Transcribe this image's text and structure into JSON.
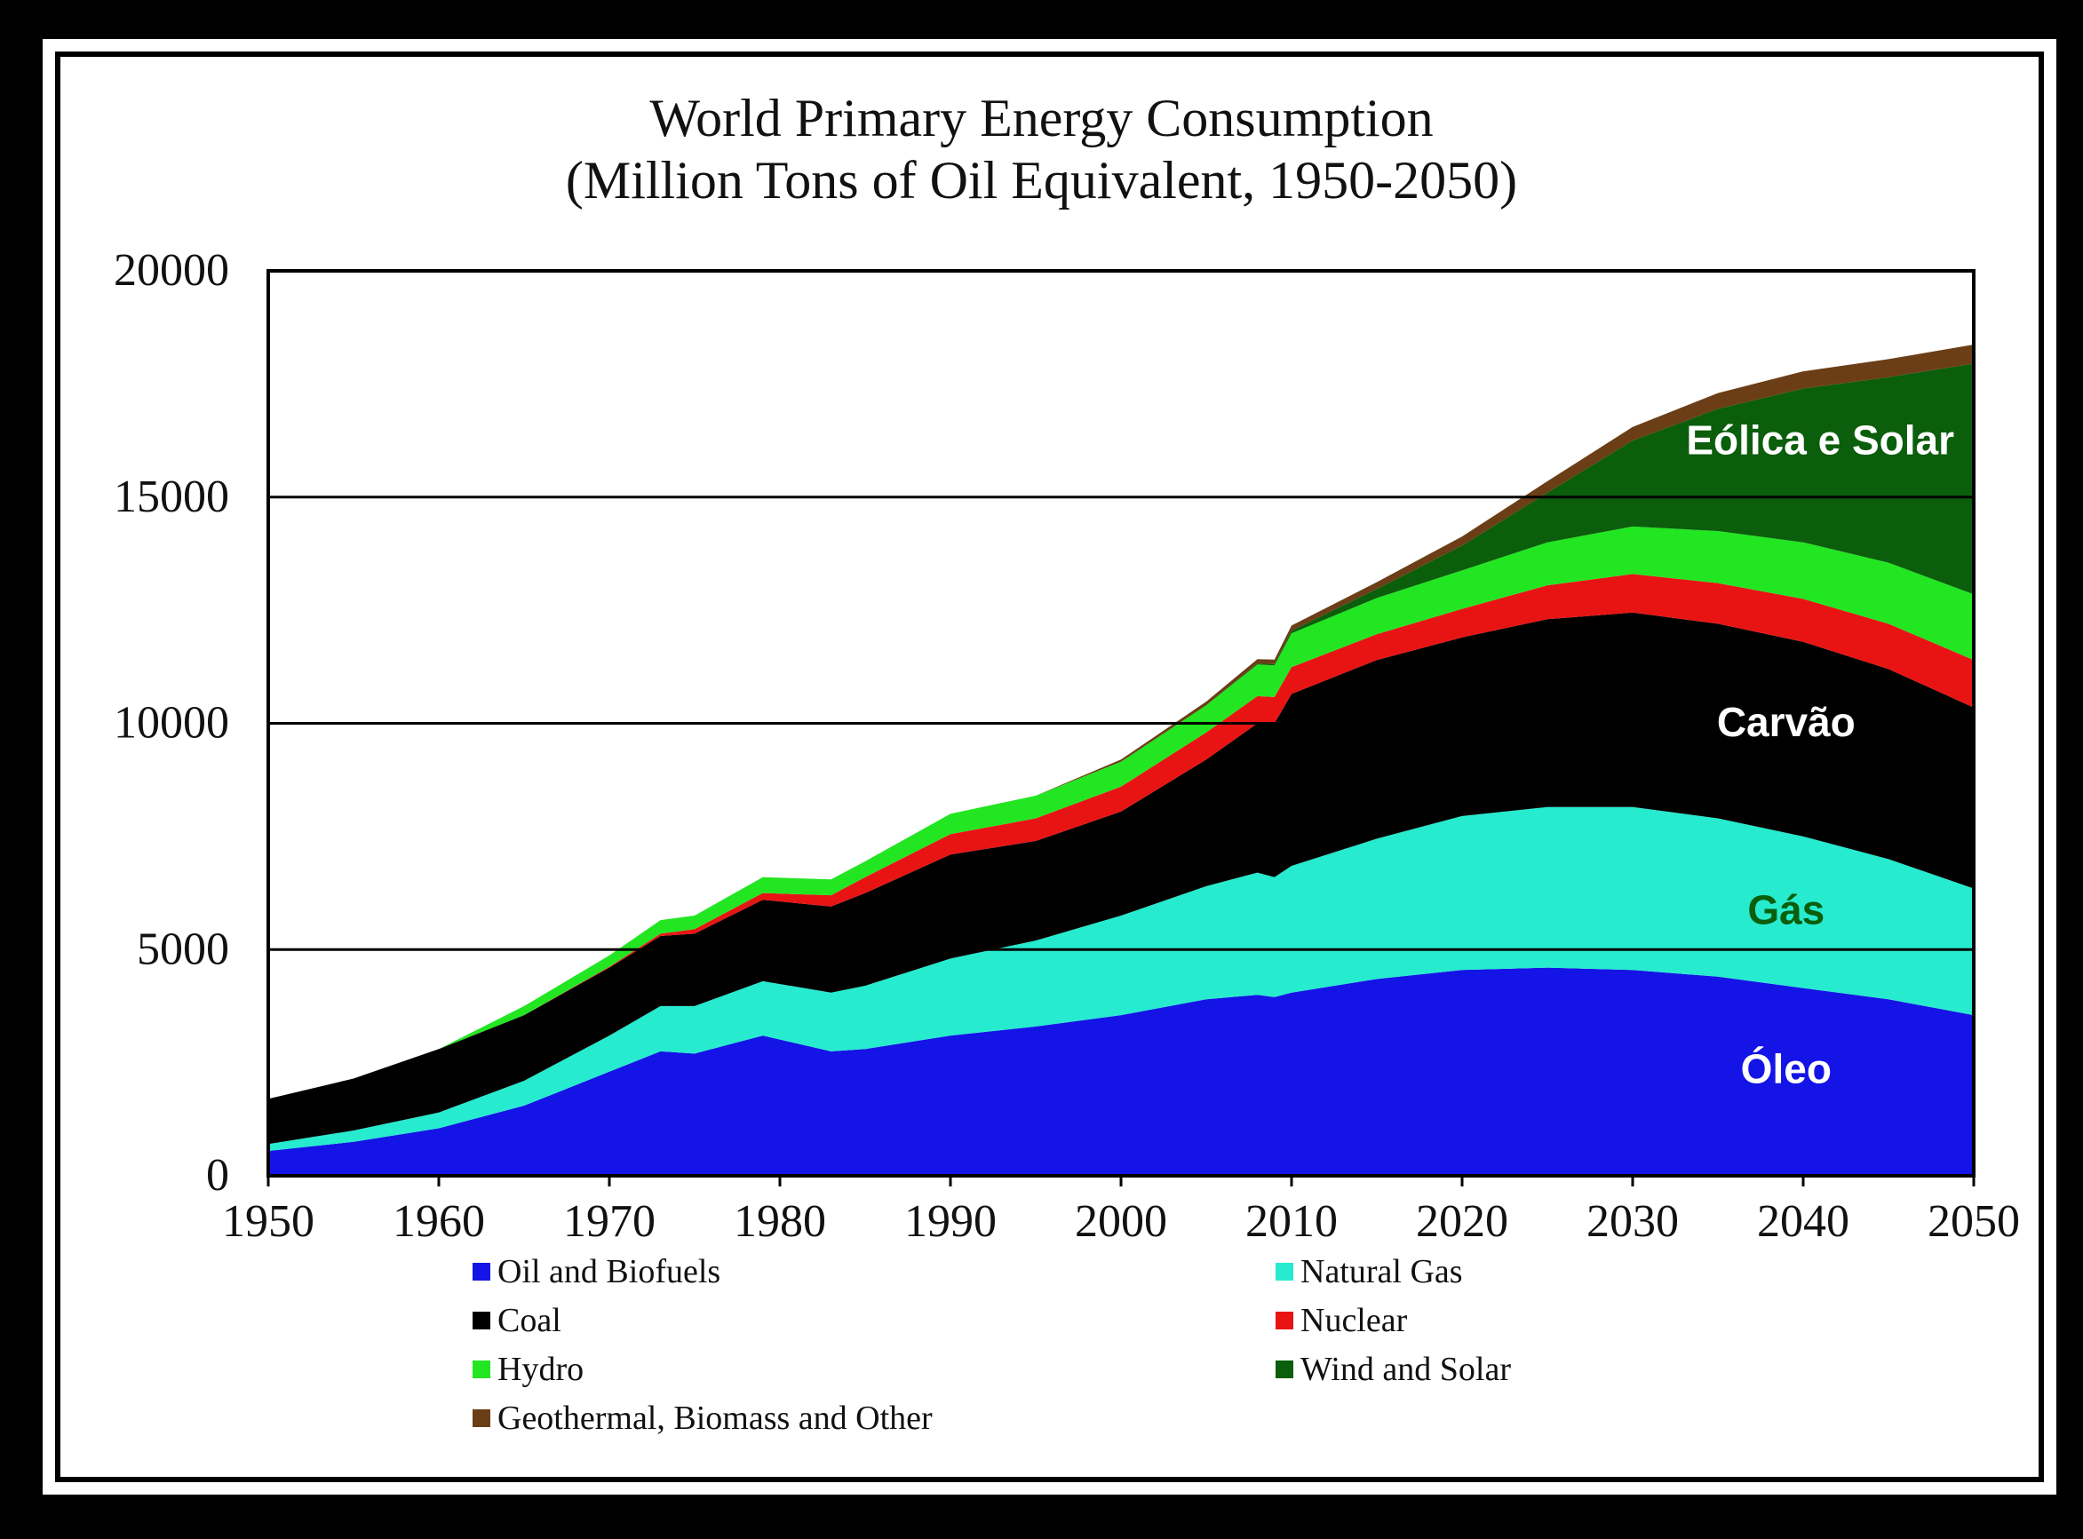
{
  "chart_data": {
    "type": "area",
    "stacked": true,
    "title": "World Primary Energy Consumption",
    "subtitle": "(Million Tons of Oil Equivalent, 1950-2050)",
    "xlim": [
      1950,
      2050
    ],
    "ylim": [
      0,
      20000
    ],
    "x_ticks": [
      "1950",
      "1960",
      "1970",
      "1980",
      "1990",
      "2000",
      "2010",
      "2020",
      "2030",
      "2040",
      "2050"
    ],
    "y_ticks": [
      "0",
      "5000",
      "10000",
      "15000",
      "20000"
    ],
    "gridlines_y": [
      5000,
      10000,
      15000
    ],
    "x": [
      1950,
      1955,
      1960,
      1965,
      1970,
      1973,
      1975,
      1979,
      1983,
      1985,
      1990,
      1995,
      2000,
      2005,
      2008,
      2009,
      2010,
      2015,
      2020,
      2025,
      2030,
      2035,
      2040,
      2045,
      2050
    ],
    "series": [
      {
        "name": "Oil and Biofuels",
        "color": "#1414e6",
        "values": [
          550,
          750,
          1050,
          1550,
          2300,
          2750,
          2700,
          3100,
          2750,
          2800,
          3100,
          3300,
          3550,
          3900,
          4000,
          3950,
          4050,
          4350,
          4550,
          4600,
          4550,
          4400,
          4150,
          3900,
          3550
        ]
      },
      {
        "name": "Natural Gas",
        "color": "#26ebcf",
        "values": [
          150,
          250,
          350,
          550,
          800,
          1000,
          1050,
          1200,
          1300,
          1400,
          1700,
          1900,
          2200,
          2500,
          2700,
          2650,
          2800,
          3100,
          3400,
          3550,
          3600,
          3500,
          3350,
          3100,
          2800
        ]
      },
      {
        "name": "Coal",
        "color": "#000000",
        "values": [
          1000,
          1150,
          1400,
          1450,
          1500,
          1550,
          1600,
          1800,
          1900,
          2050,
          2300,
          2200,
          2300,
          2800,
          3300,
          3400,
          3800,
          3950,
          3950,
          4150,
          4300,
          4300,
          4300,
          4200,
          4000
        ]
      },
      {
        "name": "Nuclear",
        "color": "#e81414",
        "values": [
          0,
          0,
          0,
          0,
          20,
          50,
          100,
          150,
          250,
          350,
          450,
          500,
          550,
          600,
          600,
          580,
          590,
          570,
          630,
          750,
          850,
          900,
          950,
          1000,
          1050
        ]
      },
      {
        "name": "Hydro",
        "color": "#22e622",
        "values": [
          0,
          0,
          0,
          200,
          250,
          300,
          300,
          350,
          350,
          350,
          450,
          500,
          550,
          600,
          700,
          700,
          750,
          800,
          850,
          950,
          1050,
          1150,
          1250,
          1350,
          1450
        ]
      },
      {
        "name": "Wind and Solar",
        "color": "#0b5e0b",
        "values": [
          0,
          0,
          0,
          0,
          0,
          0,
          0,
          0,
          0,
          0,
          0,
          0,
          0,
          0,
          20,
          30,
          60,
          200,
          550,
          1100,
          1900,
          2700,
          3400,
          4100,
          5100
        ]
      },
      {
        "name": "Geothermal, Biomass and Other",
        "color": "#6b3e17",
        "values": [
          0,
          0,
          0,
          0,
          0,
          0,
          0,
          0,
          0,
          0,
          0,
          0,
          50,
          80,
          100,
          100,
          110,
          150,
          200,
          250,
          300,
          350,
          380,
          400,
          420
        ]
      }
    ],
    "annotations": [
      {
        "text": "Eólica e Solar",
        "color": "#ffffff",
        "x": 2041,
        "y": 15950
      },
      {
        "text": "Carvão",
        "color": "#ffffff",
        "x": 2039,
        "y": 9720
      },
      {
        "text": "Gás",
        "color": "#0b5e0b",
        "x": 2039,
        "y": 5560
      },
      {
        "text": "Óleo",
        "color": "#ffffff",
        "x": 2039,
        "y": 2050
      }
    ],
    "legend_position": "bottom"
  }
}
